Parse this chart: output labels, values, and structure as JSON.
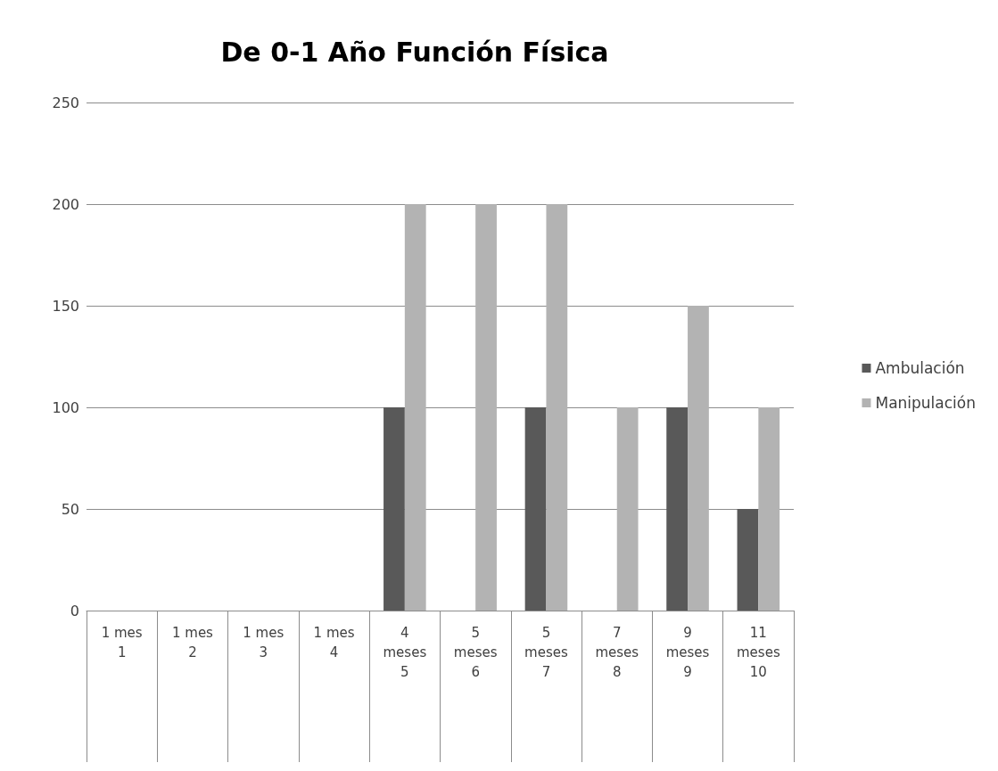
{
  "chart_data": {
    "type": "bar",
    "title": "De 0-1 Año Función Física",
    "categories": [
      "1 mes\n1",
      "1 mes\n2",
      "1 mes\n3",
      "1 mes\n4",
      "4\nmeses\n5",
      "5\nmeses\n6",
      "5\nmeses\n7",
      "7\nmeses\n8",
      "9\nmeses\n9",
      "11\nmeses\n10"
    ],
    "series": [
      {
        "name": "Ambulación",
        "color": "#595959",
        "values": [
          0,
          0,
          0,
          0,
          100,
          0,
          100,
          0,
          100,
          50
        ]
      },
      {
        "name": "Manipulación",
        "color": "#b3b3b3",
        "values": [
          0,
          0,
          0,
          0,
          200,
          200,
          200,
          100,
          150,
          100
        ]
      }
    ],
    "ylim": [
      0,
      250
    ],
    "yticks": [
      0,
      50,
      100,
      150,
      200,
      250
    ],
    "grid": "y",
    "legend": "right"
  }
}
